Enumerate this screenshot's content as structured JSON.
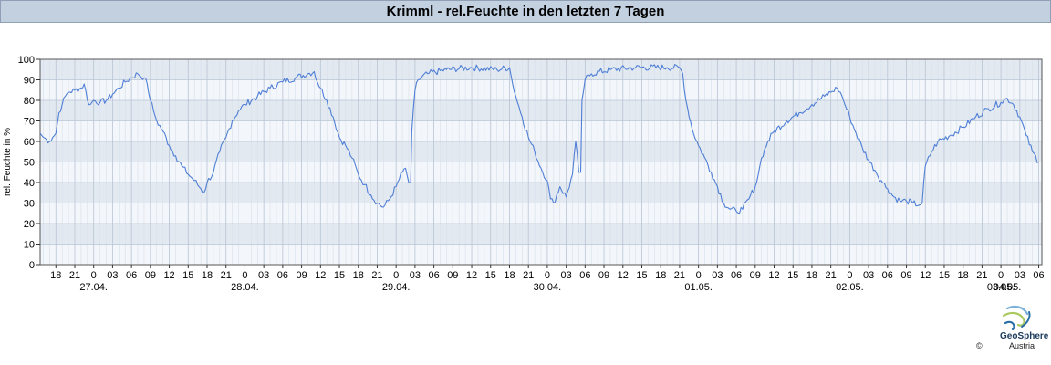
{
  "title": "Krimml - rel.Feuchte in den letzten 7 Tagen",
  "logo": {
    "name": "GeoSphere",
    "copyright": "©",
    "country": "Austria"
  },
  "chart_data": {
    "type": "line",
    "title": "Krimml - rel.Feuchte in den letzten 7 Tagen",
    "ylabel": "rel. Feuchte in %",
    "xlabel": "",
    "ylim": [
      0,
      100
    ],
    "yticks": [
      0,
      10,
      20,
      30,
      40,
      50,
      60,
      70,
      80,
      90,
      100
    ],
    "xlim": [
      15.5,
      174.5
    ],
    "grid": true,
    "line_color": "#4f7fd6",
    "hour_ticks": [
      {
        "h": 18,
        "label": "18"
      },
      {
        "h": 21,
        "label": "21"
      },
      {
        "h": 24,
        "label": "0"
      },
      {
        "h": 27,
        "label": "03"
      },
      {
        "h": 30,
        "label": "06"
      },
      {
        "h": 33,
        "label": "09"
      },
      {
        "h": 36,
        "label": "12"
      },
      {
        "h": 39,
        "label": "15"
      },
      {
        "h": 42,
        "label": "18"
      },
      {
        "h": 45,
        "label": "21"
      },
      {
        "h": 48,
        "label": "0"
      },
      {
        "h": 51,
        "label": "03"
      },
      {
        "h": 54,
        "label": "06"
      },
      {
        "h": 57,
        "label": "09"
      },
      {
        "h": 60,
        "label": "12"
      },
      {
        "h": 63,
        "label": "15"
      },
      {
        "h": 66,
        "label": "18"
      },
      {
        "h": 69,
        "label": "21"
      },
      {
        "h": 72,
        "label": "0"
      },
      {
        "h": 75,
        "label": "03"
      },
      {
        "h": 78,
        "label": "06"
      },
      {
        "h": 81,
        "label": "09"
      },
      {
        "h": 84,
        "label": "12"
      },
      {
        "h": 87,
        "label": "15"
      },
      {
        "h": 90,
        "label": "18"
      },
      {
        "h": 93,
        "label": "21"
      },
      {
        "h": 96,
        "label": "0"
      },
      {
        "h": 99,
        "label": "03"
      },
      {
        "h": 102,
        "label": "06"
      },
      {
        "h": 105,
        "label": "09"
      },
      {
        "h": 108,
        "label": "12"
      },
      {
        "h": 111,
        "label": "15"
      },
      {
        "h": 114,
        "label": "18"
      },
      {
        "h": 117,
        "label": "21"
      },
      {
        "h": 120,
        "label": "0"
      },
      {
        "h": 123,
        "label": "03"
      },
      {
        "h": 126,
        "label": "06"
      },
      {
        "h": 129,
        "label": "09"
      },
      {
        "h": 132,
        "label": "12"
      },
      {
        "h": 135,
        "label": "15"
      },
      {
        "h": 138,
        "label": "18"
      },
      {
        "h": 141,
        "label": "21"
      },
      {
        "h": 144,
        "label": "0"
      },
      {
        "h": 147,
        "label": "03"
      },
      {
        "h": 150,
        "label": "06"
      },
      {
        "h": 153,
        "label": "09"
      },
      {
        "h": 156,
        "label": "12"
      },
      {
        "h": 159,
        "label": "15"
      },
      {
        "h": 162,
        "label": "18"
      },
      {
        "h": 165,
        "label": "21"
      },
      {
        "h": 168,
        "label": "0"
      },
      {
        "h": 171,
        "label": "03"
      },
      {
        "h": 174,
        "label": "06"
      }
    ],
    "date_labels": [
      {
        "h": 24,
        "label": "27.04."
      },
      {
        "h": 48,
        "label": "28.04."
      },
      {
        "h": 72,
        "label": "29.04."
      },
      {
        "h": 96,
        "label": "30.04."
      },
      {
        "h": 120,
        "label": "01.05."
      },
      {
        "h": 144,
        "label": "02.05."
      },
      {
        "h": 168,
        "label": "03.05."
      },
      {
        "h": 192,
        "label": "04.05."
      }
    ],
    "series": [
      {
        "values": [
          [
            15.5,
            64
          ],
          [
            16,
            62
          ],
          [
            16.5,
            61
          ],
          [
            17,
            60
          ],
          [
            17.5,
            62
          ],
          [
            18,
            64
          ],
          [
            18.5,
            74
          ],
          [
            19,
            78
          ],
          [
            19.5,
            82
          ],
          [
            20,
            84
          ],
          [
            21,
            85
          ],
          [
            22,
            86
          ],
          [
            22.5,
            88
          ],
          [
            23,
            80
          ],
          [
            23.5,
            78
          ],
          [
            24,
            80
          ],
          [
            25,
            79
          ],
          [
            26,
            80
          ],
          [
            27,
            83
          ],
          [
            28,
            86
          ],
          [
            29,
            89
          ],
          [
            30,
            91
          ],
          [
            31,
            93
          ],
          [
            32,
            91
          ],
          [
            32.5,
            88
          ],
          [
            33,
            80
          ],
          [
            33.5,
            75
          ],
          [
            34,
            70
          ],
          [
            35,
            65
          ],
          [
            36,
            58
          ],
          [
            37,
            53
          ],
          [
            38,
            48
          ],
          [
            39,
            44
          ],
          [
            40,
            41
          ],
          [
            41,
            37
          ],
          [
            41.5,
            35
          ],
          [
            42,
            40
          ],
          [
            43,
            45
          ],
          [
            44,
            55
          ],
          [
            45,
            62
          ],
          [
            46,
            70
          ],
          [
            47,
            75
          ],
          [
            48,
            78
          ],
          [
            50,
            82
          ],
          [
            52,
            86
          ],
          [
            54,
            89
          ],
          [
            56,
            91
          ],
          [
            58,
            93
          ],
          [
            59,
            94
          ],
          [
            59.5,
            89
          ],
          [
            60,
            86
          ],
          [
            61,
            80
          ],
          [
            62,
            72
          ],
          [
            63,
            62
          ],
          [
            64,
            58
          ],
          [
            65,
            52
          ],
          [
            66,
            44
          ],
          [
            67,
            39
          ],
          [
            68,
            34
          ],
          [
            69,
            30
          ],
          [
            70,
            28
          ],
          [
            71,
            32
          ],
          [
            72,
            38
          ],
          [
            73,
            45
          ],
          [
            73.5,
            47
          ],
          [
            74,
            40
          ],
          [
            74.3,
            40
          ],
          [
            74.5,
            65
          ],
          [
            75,
            85
          ],
          [
            75.5,
            90
          ],
          [
            77,
            93
          ],
          [
            80,
            95
          ],
          [
            84,
            96
          ],
          [
            88,
            95
          ],
          [
            90,
            96
          ],
          [
            90.5,
            88
          ],
          [
            91,
            82
          ],
          [
            92,
            72
          ],
          [
            93,
            62
          ],
          [
            94,
            55
          ],
          [
            95,
            47
          ],
          [
            96,
            41
          ],
          [
            96.5,
            32
          ],
          [
            97,
            30
          ],
          [
            98,
            38
          ],
          [
            99,
            33
          ],
          [
            100,
            44
          ],
          [
            100.5,
            60
          ],
          [
            101,
            45
          ],
          [
            101.3,
            45
          ],
          [
            101.5,
            80
          ],
          [
            102,
            90
          ],
          [
            103,
            93
          ],
          [
            106,
            95
          ],
          [
            110,
            96
          ],
          [
            115,
            96
          ],
          [
            117,
            96
          ],
          [
            117.5,
            93
          ],
          [
            118,
            80
          ],
          [
            119,
            66
          ],
          [
            120,
            58
          ],
          [
            121,
            52
          ],
          [
            122,
            45
          ],
          [
            123,
            38
          ],
          [
            124,
            30
          ],
          [
            125,
            27
          ],
          [
            126,
            26
          ],
          [
            127,
            27
          ],
          [
            128,
            32
          ],
          [
            129,
            38
          ],
          [
            129.5,
            44
          ],
          [
            130,
            52
          ],
          [
            131,
            60
          ],
          [
            132,
            65
          ],
          [
            134,
            70
          ],
          [
            136,
            74
          ],
          [
            138,
            78
          ],
          [
            140,
            82
          ],
          [
            141,
            84
          ],
          [
            142,
            86
          ],
          [
            142.5,
            84
          ],
          [
            143,
            80
          ],
          [
            144,
            72
          ],
          [
            145,
            64
          ],
          [
            146,
            57
          ],
          [
            147,
            51
          ],
          [
            148,
            46
          ],
          [
            149,
            41
          ],
          [
            150,
            37
          ],
          [
            151,
            33
          ],
          [
            152,
            31
          ],
          [
            153,
            31
          ],
          [
            154,
            30
          ],
          [
            155,
            29
          ],
          [
            155.5,
            30
          ],
          [
            156,
            48
          ],
          [
            157,
            55
          ],
          [
            158,
            60
          ],
          [
            160,
            63
          ],
          [
            162,
            67
          ],
          [
            164,
            72
          ],
          [
            166,
            76
          ],
          [
            168,
            79
          ],
          [
            169,
            81
          ],
          [
            170,
            78
          ],
          [
            171,
            72
          ],
          [
            172,
            63
          ],
          [
            173,
            55
          ],
          [
            174,
            50
          ]
        ]
      }
    ]
  }
}
